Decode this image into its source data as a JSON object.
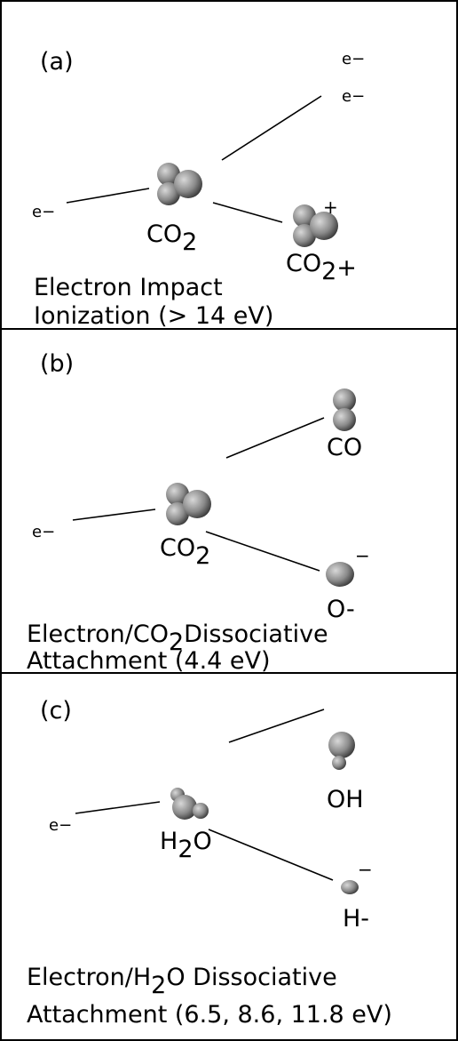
{
  "panels": [
    {
      "label": "(a)",
      "electrons": [
        "e−",
        "e−",
        "e−"
      ],
      "reactant": {
        "base": "CO",
        "sub": "2"
      },
      "products": [
        {
          "base": "CO",
          "sub": "2",
          "sup": "+"
        }
      ],
      "charge": "+",
      "caption": [
        "Electron Impact",
        "Ionization (> 14 eV)"
      ]
    },
    {
      "label": "(b)",
      "electrons": [
        "e−"
      ],
      "reactant": {
        "base": "CO",
        "sub": "2"
      },
      "products": [
        "CO",
        "O-"
      ],
      "charge": "−",
      "caption": [
        {
          "pre": "Electron/CO",
          "sub": "2",
          "post": "Dissociative"
        },
        "Attachment (4.4 eV)"
      ]
    },
    {
      "label": "(c)",
      "electrons": [
        "e−"
      ],
      "reactant": {
        "base": "H",
        "sub": "2",
        "post": "O"
      },
      "products": [
        "OH",
        "H-"
      ],
      "charge": "−",
      "caption": [
        {
          "pre": "Electron/H",
          "sub": "2",
          "post": "O Dissociative"
        },
        "Attachment (6.5, 8.6, 11.8 eV)"
      ]
    }
  ]
}
